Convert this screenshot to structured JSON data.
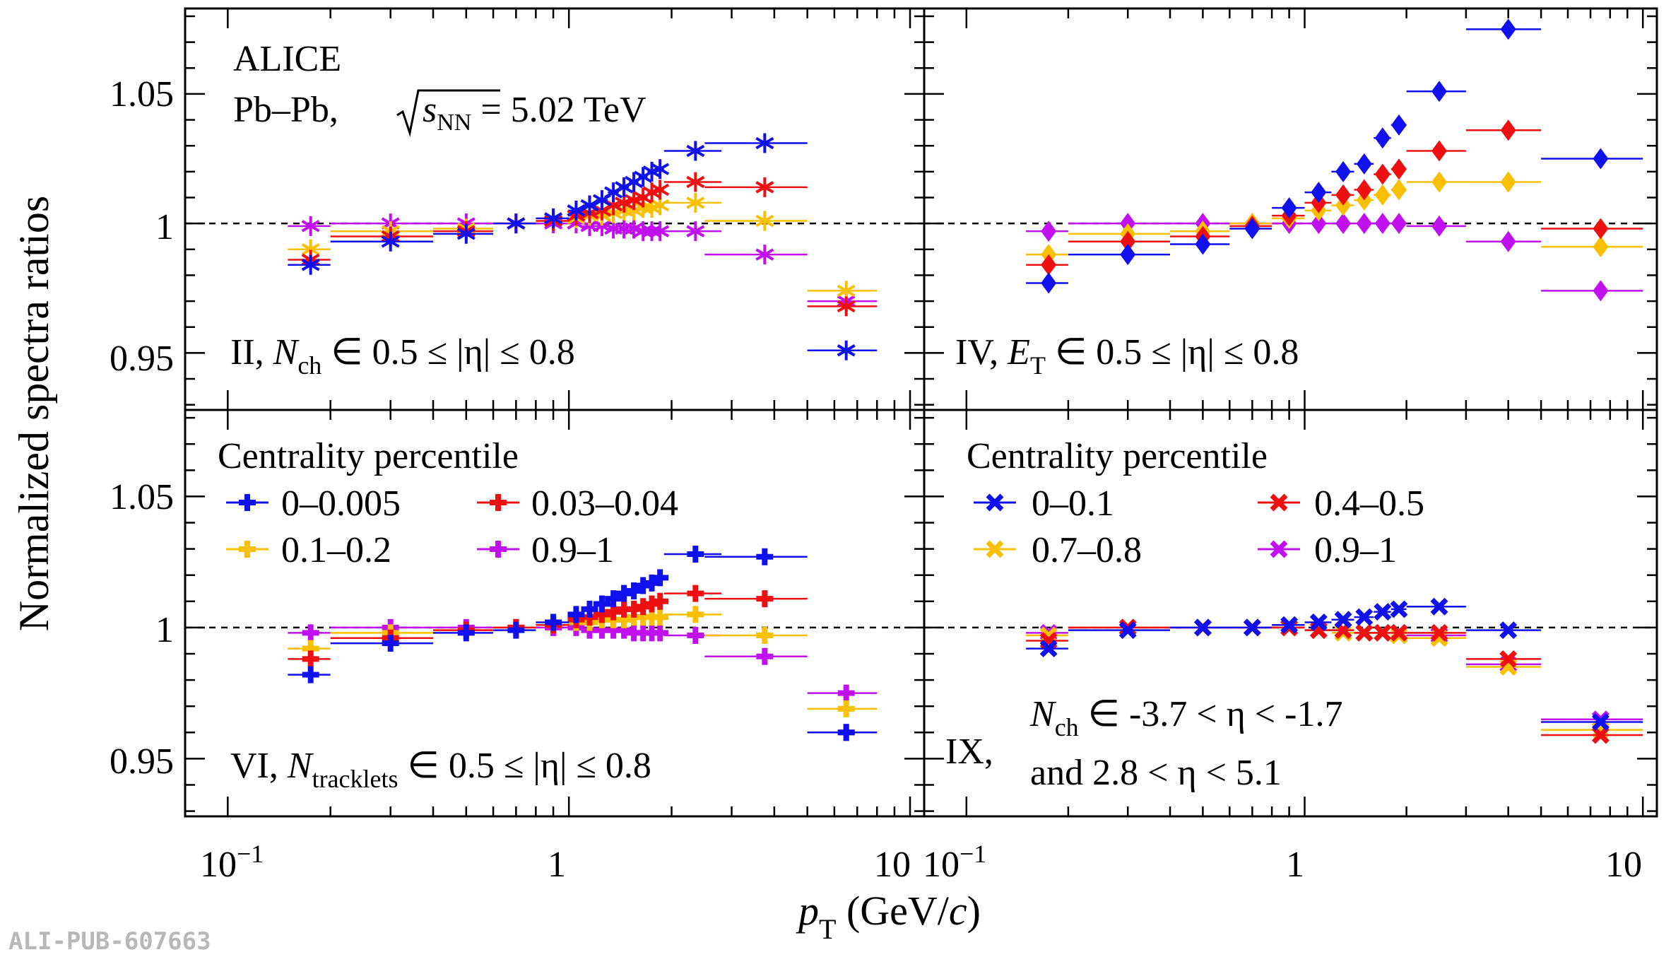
{
  "tag": "ALI-PUB-607663",
  "ylabel": "Normalized spectra ratios",
  "xlabel": {
    "main": "p",
    "sub": "T",
    "unit_pre": " (GeV/",
    "unit_c": "c",
    "unit_post": ")"
  },
  "yticks": [
    "1.05",
    "1",
    "0.95"
  ],
  "xticks": {
    "a": "10",
    "a_exp": "−1",
    "b": "1",
    "c": "10"
  },
  "experiment": "ALICE",
  "system": {
    "pre": "Pb–Pb, ",
    "s": "s",
    "s_sub": "NN",
    "post": " = 5.02 TeV"
  },
  "legend_title": "Centrality percentile",
  "panels": {
    "II": {
      "roman": "II, ",
      "var": "N",
      "var_sub": "ch",
      "range": " ∈ 0.5 ≤ |η| ≤ 0.8"
    },
    "IV": {
      "roman": "IV, ",
      "var": "E",
      "var_sub": "T",
      "range": " ∈ 0.5 ≤ |η| ≤ 0.8"
    },
    "VI": {
      "roman": "VI, ",
      "var": "N",
      "var_sub": "tracklets",
      "range": " ∈ 0.5 ≤ |η| ≤ 0.8"
    },
    "IX": {
      "roman": "IX,",
      "var": "N",
      "var_sub": "ch",
      "range": " ∈ -3.7 < η < -1.7",
      "line2": "and 2.8 < η < 5.1"
    }
  },
  "colors": {
    "blue": "#1010ee",
    "red": "#ee1010",
    "gold": "#f8c000",
    "violet": "#c010f0"
  },
  "chart_data": [
    {
      "type": "scatter",
      "panel": "II",
      "marker": "asterisk",
      "x": [
        0.175,
        0.3,
        0.5,
        0.7,
        0.9,
        1.05,
        1.15,
        1.25,
        1.35,
        1.45,
        1.55,
        1.65,
        1.75,
        1.85,
        2.35,
        3.75,
        6.5
      ],
      "xerr": [
        0.025,
        0.1,
        0.1,
        0.1,
        0.1,
        0.05,
        0.05,
        0.05,
        0.05,
        0.05,
        0.05,
        0.05,
        0.05,
        0.05,
        0.45,
        1.25,
        1.5
      ],
      "ylim": [
        0.928,
        1.083
      ],
      "xlim": [
        0.075,
        11
      ],
      "series": [
        {
          "name": "0–0.005",
          "color": "blue",
          "values": [
            0.984,
            0.993,
            0.996,
            1.0,
            1.002,
            1.005,
            1.007,
            1.009,
            1.012,
            1.014,
            1.016,
            1.018,
            1.02,
            1.021,
            1.028,
            1.031,
            0.951
          ]
        },
        {
          "name": "0.03–0.04",
          "color": "red",
          "values": [
            0.986,
            0.995,
            0.997,
            1.0,
            1.001,
            1.003,
            1.004,
            1.005,
            1.007,
            1.008,
            1.009,
            1.01,
            1.012,
            1.013,
            1.016,
            1.014,
            0.968
          ]
        },
        {
          "name": "0.1–0.2",
          "color": "gold",
          "values": [
            0.99,
            0.997,
            0.998,
            1.0,
            1.001,
            1.002,
            1.003,
            1.003,
            1.004,
            1.005,
            1.005,
            1.006,
            1.006,
            1.007,
            1.008,
            1.001,
            0.974
          ]
        },
        {
          "name": "0.9–1",
          "color": "violet",
          "values": [
            0.999,
            1.0,
            1.0,
            1.0,
            1.0,
            1.0,
            0.999,
            0.999,
            0.998,
            0.998,
            0.998,
            0.997,
            0.997,
            0.997,
            0.997,
            0.988,
            0.97
          ]
        }
      ]
    },
    {
      "type": "scatter",
      "panel": "IV",
      "marker": "diamond",
      "x": [
        0.175,
        0.3,
        0.5,
        0.7,
        0.9,
        1.1,
        1.3,
        1.5,
        1.7,
        1.9,
        2.5,
        4.0,
        7.5
      ],
      "xerr": [
        0.025,
        0.1,
        0.1,
        0.1,
        0.1,
        0.1,
        0.1,
        0.1,
        0.1,
        0.1,
        0.5,
        1.0,
        2.5
      ],
      "ylim": [
        0.928,
        1.083
      ],
      "xlim": [
        0.075,
        11
      ],
      "series": [
        {
          "name": "0–0.005",
          "color": "blue",
          "values": [
            0.977,
            0.988,
            0.992,
            0.998,
            1.006,
            1.012,
            1.02,
            1.023,
            1.033,
            1.038,
            1.051,
            1.075,
            1.025
          ]
        },
        {
          "name": "0.03–0.04",
          "color": "red",
          "values": [
            0.984,
            0.993,
            0.995,
            0.999,
            1.003,
            1.008,
            1.011,
            1.013,
            1.019,
            1.021,
            1.028,
            1.036,
            0.998
          ]
        },
        {
          "name": "0.1–0.2",
          "color": "gold",
          "values": [
            0.988,
            0.996,
            0.997,
            1.0,
            1.002,
            1.005,
            1.007,
            1.009,
            1.011,
            1.013,
            1.016,
            1.016,
            0.991
          ]
        },
        {
          "name": "0.9–1",
          "color": "violet",
          "values": [
            0.997,
            1.0,
            1.0,
            1.0,
            1.0,
            1.0,
            1.0,
            1.0,
            1.0,
            1.0,
            0.999,
            0.993,
            0.974
          ]
        }
      ]
    },
    {
      "type": "scatter",
      "panel": "VI",
      "marker": "cross",
      "x": [
        0.175,
        0.3,
        0.5,
        0.7,
        0.9,
        1.05,
        1.15,
        1.25,
        1.35,
        1.45,
        1.55,
        1.65,
        1.75,
        1.85,
        2.35,
        3.75,
        6.5
      ],
      "xerr": [
        0.025,
        0.1,
        0.1,
        0.1,
        0.1,
        0.05,
        0.05,
        0.05,
        0.05,
        0.05,
        0.05,
        0.05,
        0.05,
        0.05,
        0.45,
        1.25,
        1.5
      ],
      "ylim": [
        0.928,
        1.083
      ],
      "xlim": [
        0.075,
        11
      ],
      "legend": {
        "columns": [
          [
            "0–0.005",
            "0.1–0.2"
          ],
          [
            "0.03–0.04",
            "0.9–1"
          ]
        ],
        "colors": [
          [
            "blue",
            "gold"
          ],
          [
            "red",
            "violet"
          ]
        ]
      },
      "series": [
        {
          "name": "0–0.005",
          "color": "blue",
          "values": [
            0.982,
            0.994,
            0.998,
            0.999,
            1.002,
            1.005,
            1.007,
            1.009,
            1.011,
            1.013,
            1.014,
            1.016,
            1.017,
            1.019,
            1.028,
            1.027,
            0.96
          ]
        },
        {
          "name": "0.03–0.04",
          "color": "red",
          "values": [
            0.988,
            0.996,
            0.999,
            1.0,
            1.001,
            1.003,
            1.004,
            1.005,
            1.006,
            1.007,
            1.007,
            1.008,
            1.009,
            1.01,
            1.013,
            1.011,
            0.96
          ]
        },
        {
          "name": "0.1–0.2",
          "color": "gold",
          "values": [
            0.992,
            0.998,
            0.999,
            1.0,
            1.001,
            1.002,
            1.002,
            1.003,
            1.003,
            1.003,
            1.004,
            1.004,
            1.004,
            1.004,
            1.005,
            0.997,
            0.969
          ]
        },
        {
          "name": "0.9–1",
          "color": "violet",
          "values": [
            0.998,
            1.0,
            1.0,
            1.0,
            1.0,
            1.0,
            0.999,
            0.999,
            0.999,
            0.999,
            0.998,
            0.998,
            0.998,
            0.998,
            0.997,
            0.989,
            0.975
          ]
        }
      ]
    },
    {
      "type": "scatter",
      "panel": "IX",
      "marker": "x",
      "x": [
        0.175,
        0.3,
        0.5,
        0.7,
        0.9,
        1.1,
        1.3,
        1.5,
        1.7,
        1.9,
        2.5,
        4.0,
        7.5
      ],
      "xerr": [
        0.025,
        0.1,
        0.1,
        0.1,
        0.1,
        0.1,
        0.1,
        0.1,
        0.1,
        0.1,
        0.5,
        1.0,
        2.5
      ],
      "ylim": [
        0.928,
        1.083
      ],
      "xlim": [
        0.075,
        11
      ],
      "legend": {
        "columns": [
          [
            "0–0.1",
            "0.7–0.8"
          ],
          [
            "0.4–0.5",
            "0.9–1"
          ]
        ],
        "colors": [
          [
            "blue",
            "gold"
          ],
          [
            "red",
            "violet"
          ]
        ]
      },
      "series": [
        {
          "name": "0–0.1",
          "color": "blue",
          "values": [
            0.992,
            0.999,
            1.0,
            1.0,
            1.001,
            1.002,
            1.003,
            1.004,
            1.006,
            1.007,
            1.008,
            0.999,
            0.964
          ]
        },
        {
          "name": "0.4–0.5",
          "color": "red",
          "values": [
            0.995,
            1.0,
            1.0,
            1.0,
            1.0,
            0.999,
            0.999,
            0.998,
            0.998,
            0.998,
            0.998,
            0.988,
            0.959
          ]
        },
        {
          "name": "0.7–0.8",
          "color": "gold",
          "values": [
            0.997,
            1.0,
            1.0,
            1.0,
            1.0,
            0.999,
            0.998,
            0.998,
            0.998,
            0.997,
            0.996,
            0.985,
            0.961
          ]
        },
        {
          "name": "0.9–1",
          "color": "violet",
          "values": [
            0.998,
            1.0,
            1.0,
            1.0,
            1.0,
            0.999,
            0.999,
            0.998,
            0.998,
            0.998,
            0.997,
            0.986,
            0.965
          ]
        }
      ]
    }
  ]
}
